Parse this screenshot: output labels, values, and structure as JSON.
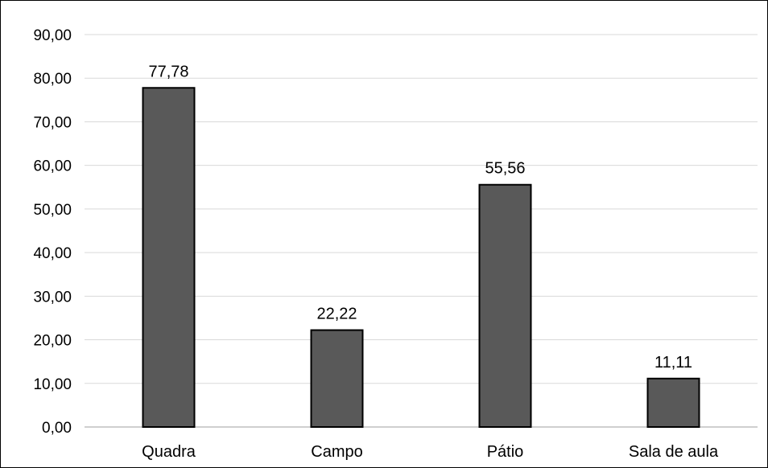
{
  "chart_data": {
    "type": "bar",
    "title": "",
    "xlabel": "",
    "ylabel": "",
    "categories": [
      "Quadra",
      "Campo",
      "Pátio",
      "Sala de aula"
    ],
    "values": [
      77.78,
      22.22,
      55.56,
      11.11
    ],
    "value_labels": [
      "77,78",
      "22,22",
      "55,56",
      "11,11"
    ],
    "ylim": [
      0,
      90
    ],
    "yticks": [
      0,
      10,
      20,
      30,
      40,
      50,
      60,
      70,
      80,
      90
    ],
    "ytick_labels": [
      "0,00",
      "10,00",
      "20,00",
      "30,00",
      "40,00",
      "50,00",
      "60,00",
      "70,00",
      "80,00",
      "90,00"
    ],
    "grid": true,
    "legend": "none",
    "bar_color": "#595959",
    "bar_edge_color": "#000000",
    "grid_color": "#d9d9d9"
  }
}
